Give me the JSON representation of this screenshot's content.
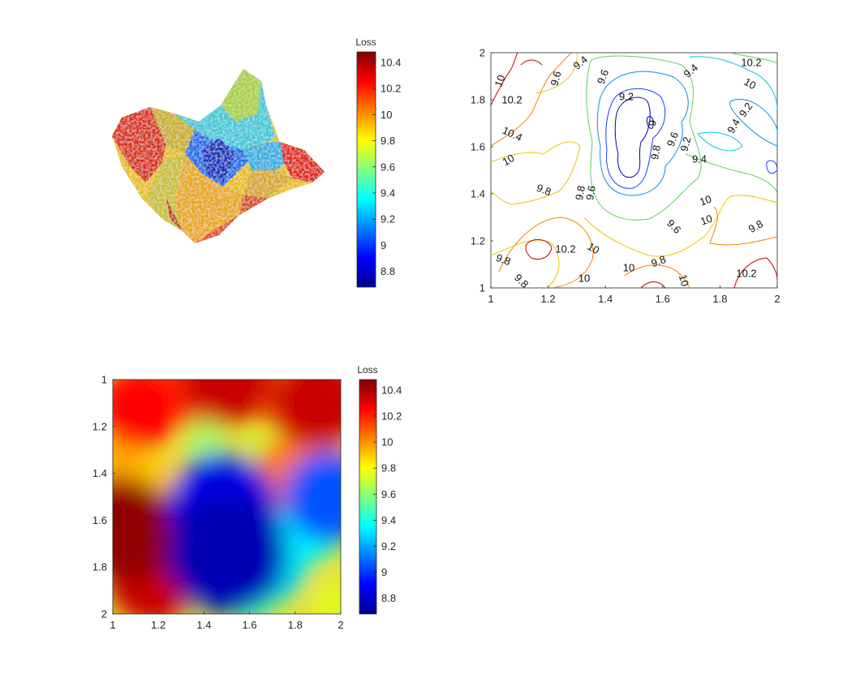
{
  "chart_data": [
    {
      "type": "surface",
      "colorbar": {
        "title": "Loss",
        "ticks": [
          "10.4",
          "10.2",
          "10",
          "9.8",
          "9.6",
          "9.4",
          "9.2",
          "9",
          "8.8"
        ],
        "range": [
          8.68,
          10.48
        ]
      }
    },
    {
      "type": "contour",
      "xlim": [
        1,
        2
      ],
      "ylim": [
        1,
        2
      ],
      "xticks": [
        "1",
        "1.2",
        "1.4",
        "1.6",
        "1.8",
        "2"
      ],
      "yticks": [
        "1",
        "1.2",
        "1.4",
        "1.6",
        "1.8",
        "2"
      ],
      "levels": [
        9,
        9.2,
        9.4,
        9.6,
        9.8,
        10,
        10.2,
        10.4
      ],
      "contour_labels": [
        "10",
        "10.2",
        "9.6",
        "9.4",
        "9.6",
        "9.4",
        "10.2",
        "10",
        "9.2",
        "9",
        "9.2",
        "9.4",
        "9.6",
        "9.8",
        "9.2",
        "9.4",
        "10.4",
        "10",
        "9.8",
        "9.8",
        "9.6",
        "10",
        "10",
        "9.6",
        "9.8",
        "10.2",
        "10",
        "9.8",
        "9.8",
        "10",
        "9.8",
        "10",
        "10",
        "10.2"
      ]
    },
    {
      "type": "heatmap",
      "xlim": [
        1,
        2
      ],
      "ylim": [
        1,
        2
      ],
      "y_direction": "reversed",
      "xticks": [
        "1",
        "1.2",
        "1.4",
        "1.6",
        "1.8",
        "2"
      ],
      "yticks": [
        "1",
        "1.2",
        "1.4",
        "1.6",
        "1.8",
        "2"
      ],
      "colorbar": {
        "title": "Loss",
        "ticks": [
          "10.4",
          "10.2",
          "10",
          "9.8",
          "9.6",
          "9.4",
          "9.2",
          "9",
          "8.8"
        ],
        "range": [
          8.68,
          10.48
        ]
      },
      "regions": [
        {
          "x": 1.08,
          "y": 1.65,
          "value": 10.45
        },
        {
          "x": 1.18,
          "y": 1.85,
          "value": 10.35
        },
        {
          "x": 1.03,
          "y": 1.62,
          "value": 10.4
        },
        {
          "x": 1.12,
          "y": 1.12,
          "value": 10.25
        },
        {
          "x": 1.28,
          "y": 1.05,
          "value": 10.15
        },
        {
          "x": 1.5,
          "y": 1.0,
          "value": 10.35
        },
        {
          "x": 1.9,
          "y": 1.1,
          "value": 10.35
        },
        {
          "x": 1.73,
          "y": 1.05,
          "value": 10.1
        },
        {
          "x": 1.75,
          "y": 1.4,
          "value": 10.05
        },
        {
          "x": 1.88,
          "y": 1.3,
          "value": 10.0
        },
        {
          "x": 1.48,
          "y": 1.55,
          "value": 8.85
        },
        {
          "x": 1.5,
          "y": 1.75,
          "value": 8.75
        },
        {
          "x": 1.55,
          "y": 1.65,
          "value": 9.05
        },
        {
          "x": 1.45,
          "y": 1.45,
          "value": 9.3
        },
        {
          "x": 1.95,
          "y": 1.5,
          "value": 9.05
        },
        {
          "x": 1.7,
          "y": 1.8,
          "value": 9.3
        },
        {
          "x": 1.85,
          "y": 1.65,
          "value": 9.35
        },
        {
          "x": 1.6,
          "y": 1.92,
          "value": 9.45
        },
        {
          "x": 1.3,
          "y": 1.6,
          "value": 9.65
        },
        {
          "x": 1.4,
          "y": 1.25,
          "value": 9.65
        },
        {
          "x": 1.35,
          "y": 1.9,
          "value": 9.6
        },
        {
          "x": 1.65,
          "y": 1.3,
          "value": 9.7
        },
        {
          "x": 1.97,
          "y": 1.95,
          "value": 9.75
        },
        {
          "x": 1.2,
          "y": 1.45,
          "value": 9.9
        },
        {
          "x": 1.02,
          "y": 1.35,
          "value": 9.95
        }
      ]
    }
  ]
}
